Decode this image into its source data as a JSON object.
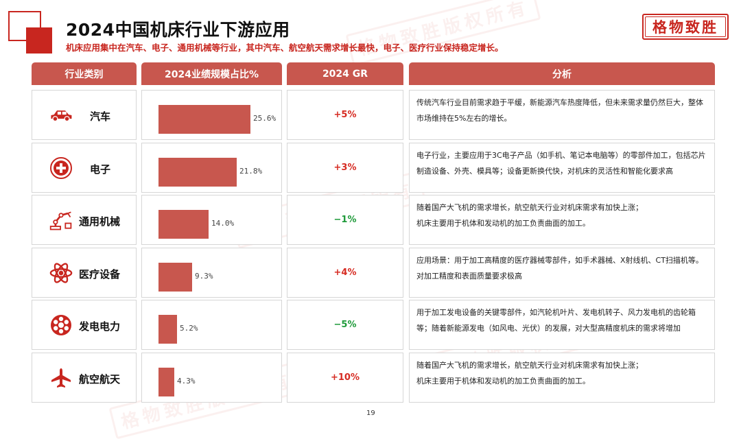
{
  "title": "2024中国机床行业下游应用",
  "subtitle": "机床应用集中在汽车、电子、通用机械等行业，其中汽车、航空航天需求增长最快，电子、医疗行业保持稳定增长。",
  "logo": "格物致胜",
  "watermark": "格物致胜版权所有",
  "headers": [
    "行业类别",
    "2024业绩规模占比%",
    "2024 GR",
    "分析"
  ],
  "colors": {
    "accent": "#c8261f",
    "header_bg": "#c8574e",
    "bar": "#c8574e",
    "positive": "#d62b22",
    "negative": "#1f9a3a"
  },
  "rows": [
    {
      "category": "汽车",
      "icon": "car-icon",
      "share": 25.6,
      "share_label": "25.6%",
      "gr": "+5%",
      "gr_sign": "positive",
      "analysis": [
        "传统汽车行业目前需求趋于平缓，新能源汽车热度降低，但未来需求量仍然巨大，整体市场维持在5%左右的增长。"
      ]
    },
    {
      "category": "电子",
      "icon": "circle-plus-icon",
      "share": 21.8,
      "share_label": "21.8%",
      "gr": "+3%",
      "gr_sign": "positive",
      "analysis": [
        "电子行业，主要应用于3C电子产品（如手机、笔记本电脑等）的零部件加工，包括芯片制造设备、外壳、模具等；设备更新换代快，对机床的灵活性和智能化要求高"
      ]
    },
    {
      "category": "通用机械",
      "icon": "robot-arm-icon",
      "share": 14.0,
      "share_label": "14.0%",
      "gr": "−1%",
      "gr_sign": "negative",
      "analysis": [
        "随着国产大飞机的需求增长，航空航天行业对机床需求有加快上涨；",
        "机床主要用于机体和发动机的加工负责曲面的加工。"
      ]
    },
    {
      "category": "医疗设备",
      "icon": "atom-icon",
      "share": 9.3,
      "share_label": "9.3%",
      "gr": "+4%",
      "gr_sign": "positive",
      "analysis": [
        "应用场景：用于加工高精度的医疗器械零部件，如手术器械、X射线机、CT扫描机等。",
        "对加工精度和表面质量要求极高"
      ]
    },
    {
      "category": "发电电力",
      "icon": "turbine-icon",
      "share": 5.2,
      "share_label": "5.2%",
      "gr": "−5%",
      "gr_sign": "negative",
      "analysis": [
        "用于加工发电设备的关键零部件，如汽轮机叶片、发电机转子、风力发电机的齿轮箱等；随着新能源发电（如风电、光伏）的发展，对大型高精度机床的需求将增加"
      ]
    },
    {
      "category": "航空航天",
      "icon": "airplane-icon",
      "share": 4.3,
      "share_label": "4.3%",
      "gr": "+10%",
      "gr_sign": "positive",
      "analysis": [
        "随着国产大飞机的需求增长，航空航天行业对机床需求有加快上涨；",
        "机床主要用于机体和发动机的加工负责曲面的加工。"
      ]
    }
  ],
  "page_number": "19"
}
